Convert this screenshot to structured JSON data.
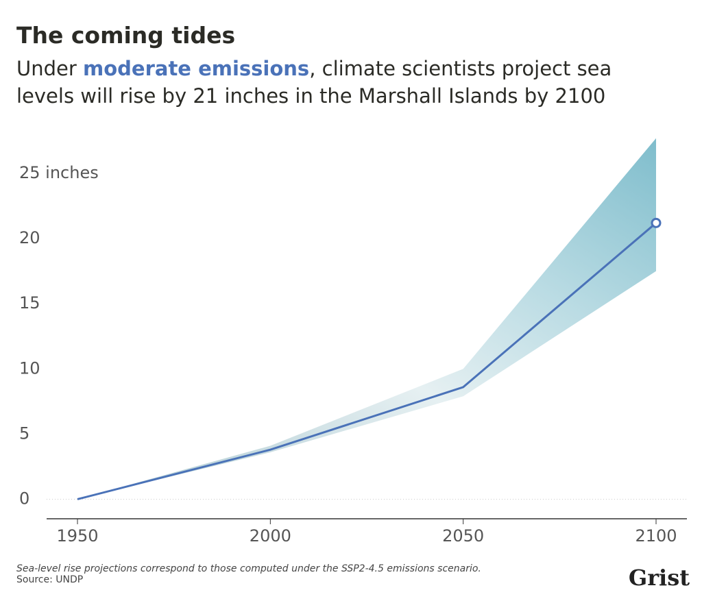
{
  "chart_data": {
    "type": "line",
    "title": "The coming tides",
    "subtitle": [
      "Under ",
      "moderate emissions",
      ", climate scientists project sea levels will rise by 21 inches in the Marshall Islands by 2100"
    ],
    "x": [
      1950,
      2000,
      2050,
      2100
    ],
    "series": [
      {
        "name": "Moderate emissions",
        "color": "#4a72b8",
        "values": [
          0,
          3.8,
          8.6,
          21.2
        ]
      }
    ],
    "band": {
      "lower": [
        0,
        3.6,
        7.9,
        17.5
      ],
      "upper": [
        0,
        4.1,
        10.0,
        27.7
      ]
    },
    "xlim": [
      1942,
      2108
    ],
    "xticks": [
      1950,
      2000,
      2050,
      2100
    ],
    "ylim": [
      -1.5,
      28
    ],
    "yticks": [
      0,
      5,
      10,
      15,
      20,
      {
        "value": 25,
        "label": "25 inches"
      }
    ],
    "zero_line": true,
    "footnote": "Sea-level rise projections correspond to those computed under the SSP2-4.5 emissions scenario.",
    "source": "Source: UNDP",
    "logo": "Grist"
  }
}
